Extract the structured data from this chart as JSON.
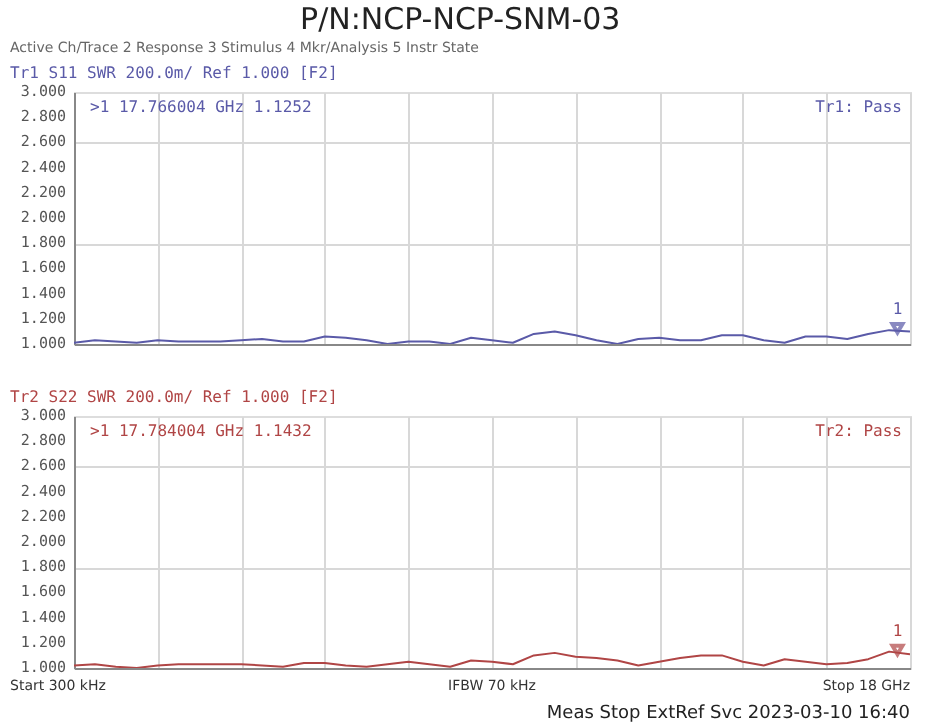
{
  "chart_data": [
    {
      "type": "line",
      "title": "P/N:NCP-NCP-SNM-03",
      "subtitle": "Tr1 S11 SWR 200.0m/ Ref 1.000 [F2]",
      "categories": [
        null,
        null,
        null,
        null,
        null,
        null,
        null,
        null,
        null,
        null,
        null,
        null,
        null,
        null,
        null,
        null,
        null,
        null,
        null,
        null,
        null,
        null,
        null,
        null,
        null,
        null,
        null,
        null,
        null,
        null,
        null,
        null,
        null,
        null,
        null,
        null,
        null,
        null,
        null,
        null,
        null
      ],
      "series": [
        {
          "color": "#5a5aa8",
          "values": [
            1.01,
            1.03,
            1.02,
            1.01,
            1.03,
            1.02,
            1.02,
            1.02,
            1.03,
            1.04,
            1.02,
            1.02,
            1.06,
            1.05,
            1.03,
            1.0,
            1.02,
            1.02,
            1.0,
            1.05,
            1.03,
            1.01,
            1.08,
            1.1,
            1.07,
            1.03,
            1.0,
            1.04,
            1.05,
            1.03,
            1.03,
            1.07,
            1.07,
            1.03,
            1.01,
            1.06,
            1.06,
            1.04,
            1.08,
            1.11,
            1.1
          ]
        }
      ],
      "ylim": [
        1.0,
        3.0
      ],
      "yticks": [
        {
          "value": 1.0,
          "label": "1.000"
        },
        {
          "value": 1.2,
          "label": "1.200"
        },
        {
          "value": 1.4,
          "label": "1.400"
        },
        {
          "value": 1.6,
          "label": "1.600"
        },
        {
          "value": 1.8,
          "label": "1.800"
        },
        {
          "value": 2.0,
          "label": "2.000"
        },
        {
          "value": 2.2,
          "label": "2.200"
        },
        {
          "value": 2.4,
          "label": "2.400"
        },
        {
          "value": 2.6,
          "label": "2.600"
        },
        {
          "value": 2.8,
          "label": "2.800"
        },
        {
          "value": 3.0,
          "label": "3.000"
        }
      ],
      "tick_labels": "y",
      "grid": true,
      "line_style": "solid",
      "annotations": [
        "Active Ch/Trace   2 Response   3 Stimulus   4 Mkr/Analysis   5 Instr State",
        ">1  17.766004 GHz  1.1252",
        "Tr1: Pass",
        {
          "text": "1",
          "y": 1.1252
        }
      ]
    },
    {
      "type": "line",
      "subtitle": "Tr2 S22 SWR 200.0m/ Ref 1.000 [F2]",
      "categories": [
        null,
        null,
        null,
        null,
        null,
        null,
        null,
        null,
        null,
        null,
        null,
        null,
        null,
        null,
        null,
        null,
        null,
        null,
        null,
        null,
        null,
        null,
        null,
        null,
        null,
        null,
        null,
        null,
        null,
        null,
        null,
        null,
        null,
        null,
        null,
        null,
        null,
        null,
        null,
        null,
        null
      ],
      "series": [
        {
          "color": "#b04545",
          "values": [
            1.02,
            1.03,
            1.01,
            1.0,
            1.02,
            1.03,
            1.03,
            1.03,
            1.03,
            1.02,
            1.01,
            1.04,
            1.04,
            1.02,
            1.01,
            1.03,
            1.05,
            1.03,
            1.01,
            1.06,
            1.05,
            1.03,
            1.1,
            1.12,
            1.09,
            1.08,
            1.06,
            1.02,
            1.05,
            1.08,
            1.1,
            1.1,
            1.05,
            1.02,
            1.07,
            1.05,
            1.03,
            1.04,
            1.07,
            1.13,
            1.11
          ]
        }
      ],
      "ylim": [
        1.0,
        3.0
      ],
      "yticks": [
        {
          "value": 1.0,
          "label": "1.000"
        },
        {
          "value": 1.2,
          "label": "1.200"
        },
        {
          "value": 1.4,
          "label": "1.400"
        },
        {
          "value": 1.6,
          "label": "1.600"
        },
        {
          "value": 1.8,
          "label": "1.800"
        },
        {
          "value": 2.0,
          "label": "2.000"
        },
        {
          "value": 2.2,
          "label": "2.200"
        },
        {
          "value": 2.4,
          "label": "2.400"
        },
        {
          "value": 2.6,
          "label": "2.600"
        },
        {
          "value": 2.8,
          "label": "2.800"
        },
        {
          "value": 3.0,
          "label": "3.000"
        }
      ],
      "tick_labels": "y",
      "grid": true,
      "line_style": "solid",
      "annotations": [
        ">1  17.784004 GHz  1.1432",
        "Tr2: Pass",
        {
          "text": "1",
          "y": 1.1432
        },
        "Start 300 kHz",
        "IFBW 70 kHz",
        "Stop 18 GHz",
        "Meas  Stop  ExtRef  Svc   2023-03-10 16:40"
      ]
    }
  ]
}
